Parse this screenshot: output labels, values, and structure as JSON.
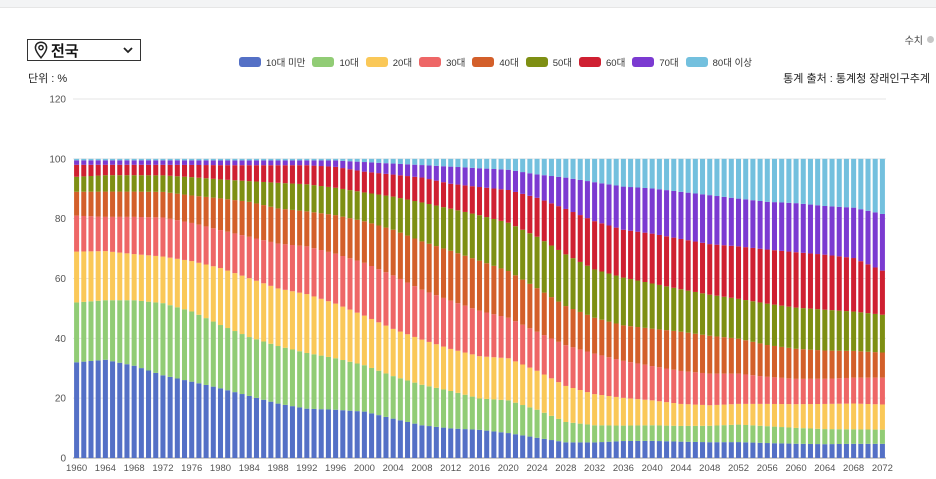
{
  "region_select": {
    "value": "전국"
  },
  "unit_label": "단위 : %",
  "source_label": "통계 출처 : 통계청 장래인구추계",
  "toggle_label": "수치",
  "chart_data": {
    "type": "bar",
    "stacked": true,
    "title": "",
    "xlabel": "",
    "ylabel": "",
    "ylim": [
      0,
      120
    ],
    "yticks": [
      0,
      20,
      40,
      60,
      80,
      100,
      120
    ],
    "grid": true,
    "legend_position": "top",
    "x": [
      1960,
      1961,
      1962,
      1963,
      1964,
      1965,
      1966,
      1967,
      1968,
      1969,
      1970,
      1971,
      1972,
      1973,
      1974,
      1975,
      1976,
      1977,
      1978,
      1979,
      1980,
      1981,
      1982,
      1983,
      1984,
      1985,
      1986,
      1987,
      1988,
      1989,
      1990,
      1991,
      1992,
      1993,
      1994,
      1995,
      1996,
      1997,
      1998,
      1999,
      2000,
      2001,
      2002,
      2003,
      2004,
      2005,
      2006,
      2007,
      2008,
      2009,
      2010,
      2011,
      2012,
      2013,
      2014,
      2015,
      2016,
      2017,
      2018,
      2019,
      2020,
      2021,
      2022,
      2023,
      2024,
      2025,
      2026,
      2027,
      2028,
      2029,
      2030,
      2031,
      2032,
      2033,
      2034,
      2035,
      2036,
      2037,
      2038,
      2039,
      2040,
      2041,
      2042,
      2043,
      2044,
      2045,
      2046,
      2047,
      2048,
      2049,
      2050,
      2051,
      2052,
      2053,
      2054,
      2055,
      2056,
      2057,
      2058,
      2059,
      2060,
      2061,
      2062,
      2063,
      2064,
      2065,
      2066,
      2067,
      2068,
      2069,
      2070,
      2071,
      2072
    ],
    "xtick_labels": [
      "1960",
      "1964",
      "1968",
      "1972",
      "1976",
      "1980",
      "1984",
      "1988",
      "1992",
      "1996",
      "2000",
      "2004",
      "2008",
      "2012",
      "2016",
      "2020",
      "2024",
      "2028",
      "2032",
      "2036",
      "2040",
      "2044",
      "2048",
      "2052",
      "2056",
      "2060",
      "2064",
      "2068",
      "2072"
    ],
    "anchor_years": [
      1960,
      1964,
      1968,
      1972,
      1976,
      1980,
      1984,
      1988,
      1992,
      1996,
      2000,
      2004,
      2008,
      2012,
      2016,
      2020,
      2024,
      2028,
      2032,
      2036,
      2040,
      2044,
      2048,
      2052,
      2056,
      2060,
      2064,
      2068,
      2072
    ],
    "series": [
      {
        "name": "10대 미만",
        "color": "#5470c6",
        "anchors": [
          32,
          33,
          31,
          27.5,
          25,
          22,
          19.5,
          17,
          15.5,
          15,
          14.5,
          12.5,
          10.5,
          9.5,
          9,
          8,
          6.5,
          5,
          5,
          5.5,
          5.5,
          5.2,
          5,
          5,
          4.7,
          4.5,
          4.4,
          4.5,
          4.5
        ]
      },
      {
        "name": "10대",
        "color": "#91cc75",
        "anchors": [
          20,
          20,
          22,
          24,
          23,
          20,
          18.5,
          18,
          17.5,
          16,
          14.5,
          13.5,
          13,
          12,
          10,
          10.5,
          9,
          6.5,
          5.5,
          5,
          5,
          5,
          5.2,
          5.5,
          5.3,
          5,
          4.8,
          4.6,
          4.5
        ]
      },
      {
        "name": "20대",
        "color": "#fac858",
        "anchors": [
          17,
          16.5,
          15.5,
          15.5,
          16.5,
          18,
          18.5,
          18,
          18.5,
          17,
          15.5,
          15,
          14.5,
          13.5,
          13.5,
          13.5,
          12.5,
          11.5,
          10,
          9,
          8,
          7,
          6.5,
          6.5,
          7,
          7.5,
          8,
          8.2,
          8
        ]
      },
      {
        "name": "30대",
        "color": "#ee6666",
        "anchors": [
          12,
          11.5,
          12.5,
          13,
          12.5,
          12,
          13,
          14,
          15,
          15.5,
          16.5,
          17,
          16,
          15.5,
          14.5,
          13,
          12.5,
          13,
          13,
          12,
          11,
          10.5,
          10,
          9.5,
          8.5,
          8,
          8,
          8.2,
          8.5
        ]
      },
      {
        "name": "40대",
        "color": "#d35f2a",
        "anchors": [
          8,
          8.5,
          8.5,
          8.5,
          9,
          10,
          11,
          11,
          11,
          12,
          13,
          14.5,
          15.5,
          16,
          16,
          15,
          14,
          12.5,
          11.5,
          11.5,
          12,
          12.5,
          12,
          11,
          10,
          9.5,
          9,
          8.5,
          8
        ]
      },
      {
        "name": "50대",
        "color": "#7e8f13",
        "anchors": [
          5,
          5.5,
          5.5,
          5.5,
          6,
          6,
          6.5,
          8,
          8.5,
          8.5,
          9,
          10.5,
          12.5,
          13.5,
          14.5,
          15.5,
          16.5,
          16.5,
          15.5,
          15.5,
          14.5,
          13.5,
          13,
          12.5,
          13,
          13,
          13,
          12.5,
          12
        ]
      },
      {
        "name": "60대",
        "color": "#cf2031",
        "anchors": [
          4,
          3.5,
          3.5,
          3.5,
          4,
          4.5,
          5,
          5.5,
          6,
          6.5,
          6.5,
          7,
          8,
          8,
          9,
          10.5,
          12.5,
          14.5,
          15.5,
          15.5,
          16,
          16,
          16,
          16.5,
          17,
          17.5,
          17.5,
          17,
          14
        ]
      },
      {
        "name": "70대",
        "color": "#7b3ad1",
        "anchors": [
          1.5,
          1.5,
          1.5,
          1.5,
          1.5,
          1.5,
          1.5,
          1.5,
          1.5,
          2,
          3,
          3.5,
          4,
          5.5,
          6,
          6.5,
          7.5,
          10,
          12.5,
          14,
          14.5,
          15,
          15.5,
          15,
          15,
          15.5,
          15.5,
          16,
          18
        ]
      },
      {
        "name": "80대 이상",
        "color": "#73c0de",
        "anchors": [
          0.5,
          0.5,
          0.5,
          0.5,
          0.5,
          0.5,
          0.5,
          0.5,
          0.5,
          0.5,
          1,
          1.5,
          2,
          2.5,
          3,
          3.5,
          5,
          6,
          7.5,
          9,
          9.5,
          10.5,
          11.5,
          12.5,
          13.5,
          14,
          15,
          15.5,
          17.5
        ]
      }
    ]
  }
}
